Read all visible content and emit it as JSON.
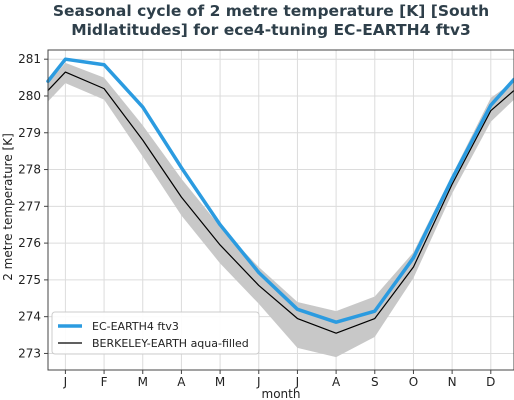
{
  "chart_data": {
    "type": "line",
    "title_lines": [
      "Seasonal cycle of 2 metre temperature [K] [South",
      "Midlatitudes] for ece4-tuning EC-EARTH4 ftv3"
    ],
    "xlabel": "month",
    "ylabel": "2 metre temperature [K]",
    "categories": [
      "J",
      "F",
      "M",
      "A",
      "M",
      "J",
      "J",
      "A",
      "S",
      "O",
      "N",
      "D"
    ],
    "x_ticks": [
      1,
      2,
      3,
      4,
      5,
      6,
      7,
      8,
      9,
      10,
      11,
      12
    ],
    "y_ticks": [
      273,
      274,
      275,
      276,
      277,
      278,
      279,
      280,
      281
    ],
    "xlim": [
      0.55,
      12.6
    ],
    "ylim": [
      272.55,
      281.25
    ],
    "grid": true,
    "legend_position": "lower-left",
    "series": [
      {
        "name": "EC-EARTH4 ftv3",
        "color": "#2b9be0",
        "x": [
          0.55,
          1,
          2,
          3,
          4,
          5,
          6,
          7,
          8,
          9,
          10,
          11,
          12,
          12.6
        ],
        "values": [
          280.4,
          281.0,
          280.85,
          279.7,
          278.05,
          276.5,
          275.2,
          274.2,
          273.85,
          274.15,
          275.6,
          277.75,
          279.75,
          280.45
        ]
      },
      {
        "name": "BERKELEY-EARTH aqua-filled",
        "color": "#000000",
        "x": [
          0.55,
          1,
          2,
          3,
          4,
          5,
          6,
          7,
          8,
          9,
          10,
          11,
          12,
          12.6
        ],
        "values": [
          280.15,
          280.65,
          280.2,
          278.8,
          277.25,
          275.95,
          274.85,
          273.95,
          273.55,
          273.95,
          275.35,
          277.6,
          279.6,
          280.15
        ],
        "band_upper": [
          280.35,
          280.9,
          280.5,
          279.2,
          277.75,
          276.45,
          275.35,
          274.4,
          274.15,
          274.55,
          275.75,
          277.85,
          279.95,
          280.4
        ],
        "band_lower": [
          279.85,
          280.35,
          279.9,
          278.35,
          276.75,
          275.45,
          274.35,
          273.15,
          272.9,
          273.45,
          275.05,
          277.35,
          279.3,
          279.9
        ]
      }
    ]
  },
  "colors": {
    "band": "#c8c8c8",
    "grid": "#dcdcdc",
    "frame": "#444444",
    "title": "#2e3f4a"
  }
}
